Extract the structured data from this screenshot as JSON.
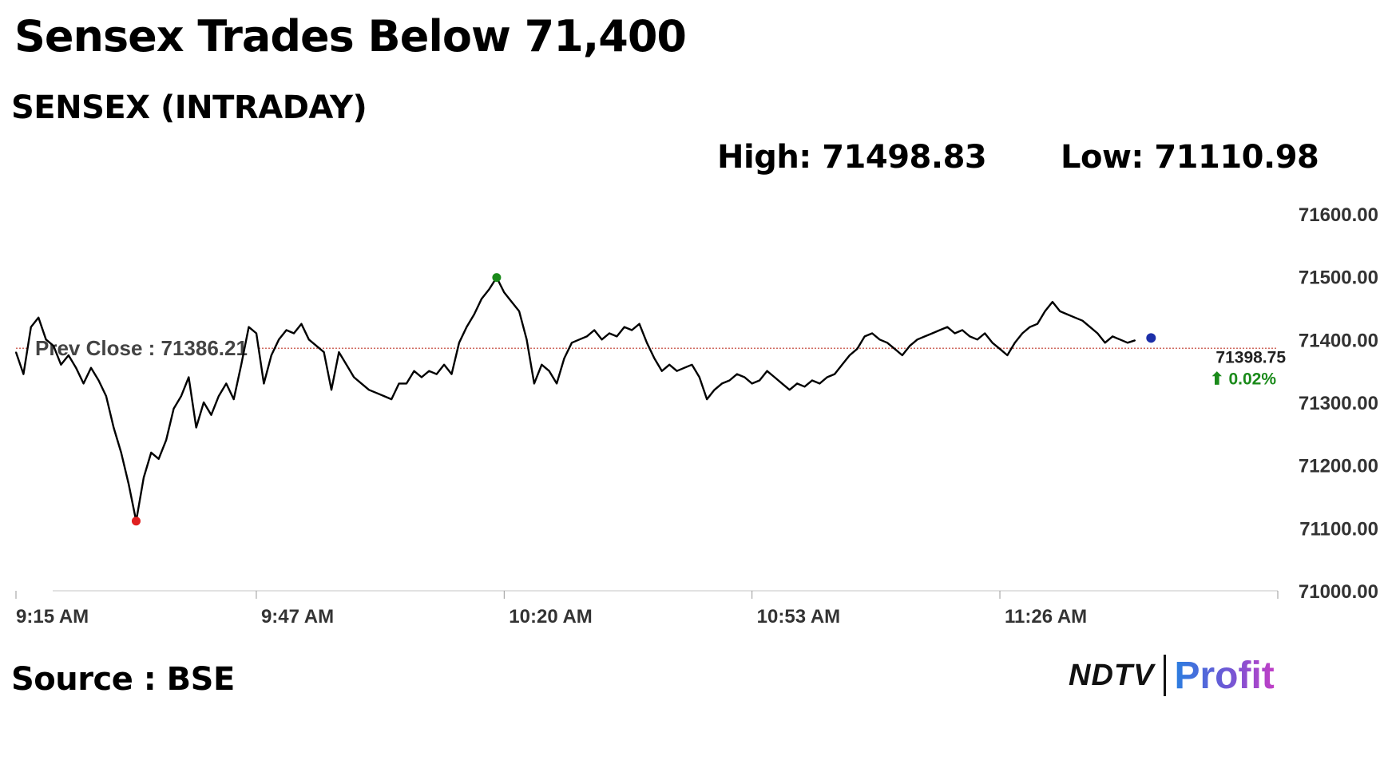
{
  "headline": "Sensex Trades Below 71,400",
  "subtitle": "SENSEX (INTRADAY)",
  "stats": {
    "high": "High: 71498.83",
    "low": "Low: 71110.98"
  },
  "source": "Source : BSE",
  "brand": {
    "ndtv": "NDTV",
    "profit": "Profit"
  },
  "colors": {
    "line": "#000000",
    "prev_close_line": "#c0392b",
    "high_marker": "#1a8a1a",
    "low_marker": "#e02020",
    "last_marker": "#1c2fa8",
    "change_positive": "#1a8a1a"
  },
  "chart_data": {
    "type": "line",
    "title": "SENSEX (INTRADAY)",
    "xlabel": "",
    "ylabel": "",
    "ylim": [
      71000,
      71600
    ],
    "xlim_minutes": [
      0,
      168
    ],
    "y_ticks": [
      "71600.00",
      "71500.00",
      "71400.00",
      "71300.00",
      "71200.00",
      "71100.00",
      "71000.00"
    ],
    "x_tick_labels": [
      "9:15 AM",
      "9:47 AM",
      "10:20 AM",
      "10:53 AM",
      "11:26 AM"
    ],
    "x_tick_minutes": [
      0,
      32,
      65,
      98,
      131
    ],
    "prev_close": 71386.21,
    "prev_close_label": "Prev Close : 71386.21",
    "high": {
      "time": "10:19 AM",
      "value": 71498.83
    },
    "low": {
      "time": "9:31 AM",
      "value": 71110.98
    },
    "last": {
      "value": 71398.75,
      "label": "71398.75",
      "change_label": "⬆ 0.02%"
    },
    "series": [
      {
        "points": [
          [
            "9:15 AM",
            71380
          ],
          [
            "9:16 AM",
            71345
          ],
          [
            "9:17 AM",
            71420
          ],
          [
            "9:18 AM",
            71435
          ],
          [
            "9:19 AM",
            71400
          ],
          [
            "9:20 AM",
            71390
          ],
          [
            "9:21 AM",
            71360
          ],
          [
            "9:22 AM",
            71375
          ],
          [
            "9:23 AM",
            71355
          ],
          [
            "9:24 AM",
            71330
          ],
          [
            "9:25 AM",
            71355
          ],
          [
            "9:26 AM",
            71335
          ],
          [
            "9:27 AM",
            71310
          ],
          [
            "9:28 AM",
            71260
          ],
          [
            "9:29 AM",
            71220
          ],
          [
            "9:30 AM",
            71170
          ],
          [
            "9:31 AM",
            71111
          ],
          [
            "9:32 AM",
            71180
          ],
          [
            "9:33 AM",
            71220
          ],
          [
            "9:34 AM",
            71210
          ],
          [
            "9:35 AM",
            71240
          ],
          [
            "9:36 AM",
            71290
          ],
          [
            "9:37 AM",
            71310
          ],
          [
            "9:38 AM",
            71340
          ],
          [
            "9:39 AM",
            71260
          ],
          [
            "9:40 AM",
            71300
          ],
          [
            "9:41 AM",
            71280
          ],
          [
            "9:42 AM",
            71310
          ],
          [
            "9:43 AM",
            71330
          ],
          [
            "9:44 AM",
            71305
          ],
          [
            "9:45 AM",
            71360
          ],
          [
            "9:46 AM",
            71420
          ],
          [
            "9:47 AM",
            71410
          ],
          [
            "9:48 AM",
            71330
          ],
          [
            "9:49 AM",
            71375
          ],
          [
            "9:50 AM",
            71400
          ],
          [
            "9:51 AM",
            71415
          ],
          [
            "9:52 AM",
            71410
          ],
          [
            "9:53 AM",
            71425
          ],
          [
            "9:54 AM",
            71400
          ],
          [
            "9:55 AM",
            71390
          ],
          [
            "9:56 AM",
            71380
          ],
          [
            "9:57 AM",
            71320
          ],
          [
            "9:58 AM",
            71380
          ],
          [
            "9:59 AM",
            71360
          ],
          [
            "10:00 AM",
            71340
          ],
          [
            "10:01 AM",
            71330
          ],
          [
            "10:02 AM",
            71320
          ],
          [
            "10:03 AM",
            71315
          ],
          [
            "10:04 AM",
            71310
          ],
          [
            "10:05 AM",
            71305
          ],
          [
            "10:06 AM",
            71330
          ],
          [
            "10:07 AM",
            71330
          ],
          [
            "10:08 AM",
            71350
          ],
          [
            "10:09 AM",
            71340
          ],
          [
            "10:10 AM",
            71350
          ],
          [
            "10:11 AM",
            71345
          ],
          [
            "10:12 AM",
            71360
          ],
          [
            "10:13 AM",
            71345
          ],
          [
            "10:14 AM",
            71395
          ],
          [
            "10:15 AM",
            71420
          ],
          [
            "10:16 AM",
            71440
          ],
          [
            "10:17 AM",
            71465
          ],
          [
            "10:18 AM",
            71480
          ],
          [
            "10:19 AM",
            71499
          ],
          [
            "10:20 AM",
            71475
          ],
          [
            "10:21 AM",
            71460
          ],
          [
            "10:22 AM",
            71445
          ],
          [
            "10:23 AM",
            71400
          ],
          [
            "10:24 AM",
            71330
          ],
          [
            "10:25 AM",
            71360
          ],
          [
            "10:26 AM",
            71350
          ],
          [
            "10:27 AM",
            71330
          ],
          [
            "10:28 AM",
            71370
          ],
          [
            "10:29 AM",
            71395
          ],
          [
            "10:30 AM",
            71400
          ],
          [
            "10:31 AM",
            71405
          ],
          [
            "10:32 AM",
            71415
          ],
          [
            "10:33 AM",
            71400
          ],
          [
            "10:34 AM",
            71410
          ],
          [
            "10:35 AM",
            71405
          ],
          [
            "10:36 AM",
            71420
          ],
          [
            "10:37 AM",
            71415
          ],
          [
            "10:38 AM",
            71425
          ],
          [
            "10:39 AM",
            71395
          ],
          [
            "10:40 AM",
            71370
          ],
          [
            "10:41 AM",
            71350
          ],
          [
            "10:42 AM",
            71360
          ],
          [
            "10:43 AM",
            71350
          ],
          [
            "10:44 AM",
            71355
          ],
          [
            "10:45 AM",
            71360
          ],
          [
            "10:46 AM",
            71340
          ],
          [
            "10:47 AM",
            71305
          ],
          [
            "10:48 AM",
            71320
          ],
          [
            "10:49 AM",
            71330
          ],
          [
            "10:50 AM",
            71335
          ],
          [
            "10:51 AM",
            71345
          ],
          [
            "10:52 AM",
            71340
          ],
          [
            "10:53 AM",
            71330
          ],
          [
            "10:54 AM",
            71335
          ],
          [
            "10:55 AM",
            71350
          ],
          [
            "10:56 AM",
            71340
          ],
          [
            "10:57 AM",
            71330
          ],
          [
            "10:58 AM",
            71320
          ],
          [
            "10:59 AM",
            71330
          ],
          [
            "11:00 AM",
            71325
          ],
          [
            "11:01 AM",
            71335
          ],
          [
            "11:02 AM",
            71330
          ],
          [
            "11:03 AM",
            71340
          ],
          [
            "11:04 AM",
            71345
          ],
          [
            "11:05 AM",
            71360
          ],
          [
            "11:06 AM",
            71375
          ],
          [
            "11:07 AM",
            71385
          ],
          [
            "11:08 AM",
            71405
          ],
          [
            "11:09 AM",
            71410
          ],
          [
            "11:10 AM",
            71400
          ],
          [
            "11:11 AM",
            71395
          ],
          [
            "11:12 AM",
            71385
          ],
          [
            "11:13 AM",
            71375
          ],
          [
            "11:14 AM",
            71390
          ],
          [
            "11:15 AM",
            71400
          ],
          [
            "11:16 AM",
            71405
          ],
          [
            "11:17 AM",
            71410
          ],
          [
            "11:18 AM",
            71415
          ],
          [
            "11:19 AM",
            71420
          ],
          [
            "11:20 AM",
            71410
          ],
          [
            "11:21 AM",
            71415
          ],
          [
            "11:22 AM",
            71405
          ],
          [
            "11:23 AM",
            71400
          ],
          [
            "11:24 AM",
            71410
          ],
          [
            "11:25 AM",
            71395
          ],
          [
            "11:26 AM",
            71385
          ],
          [
            "11:27 AM",
            71375
          ],
          [
            "11:28 AM",
            71395
          ],
          [
            "11:29 AM",
            71410
          ],
          [
            "11:30 AM",
            71420
          ],
          [
            "11:31 AM",
            71425
          ],
          [
            "11:32 AM",
            71445
          ],
          [
            "11:33 AM",
            71460
          ],
          [
            "11:34 AM",
            71445
          ],
          [
            "11:35 AM",
            71440
          ],
          [
            "11:36 AM",
            71435
          ],
          [
            "11:37 AM",
            71430
          ],
          [
            "11:38 AM",
            71420
          ],
          [
            "11:39 AM",
            71410
          ],
          [
            "11:40 AM",
            71395
          ],
          [
            "11:41 AM",
            71405
          ],
          [
            "11:42 AM",
            71400
          ],
          [
            "11:43 AM",
            71395
          ],
          [
            "11:44 AM",
            71398.75
          ]
        ]
      }
    ]
  }
}
